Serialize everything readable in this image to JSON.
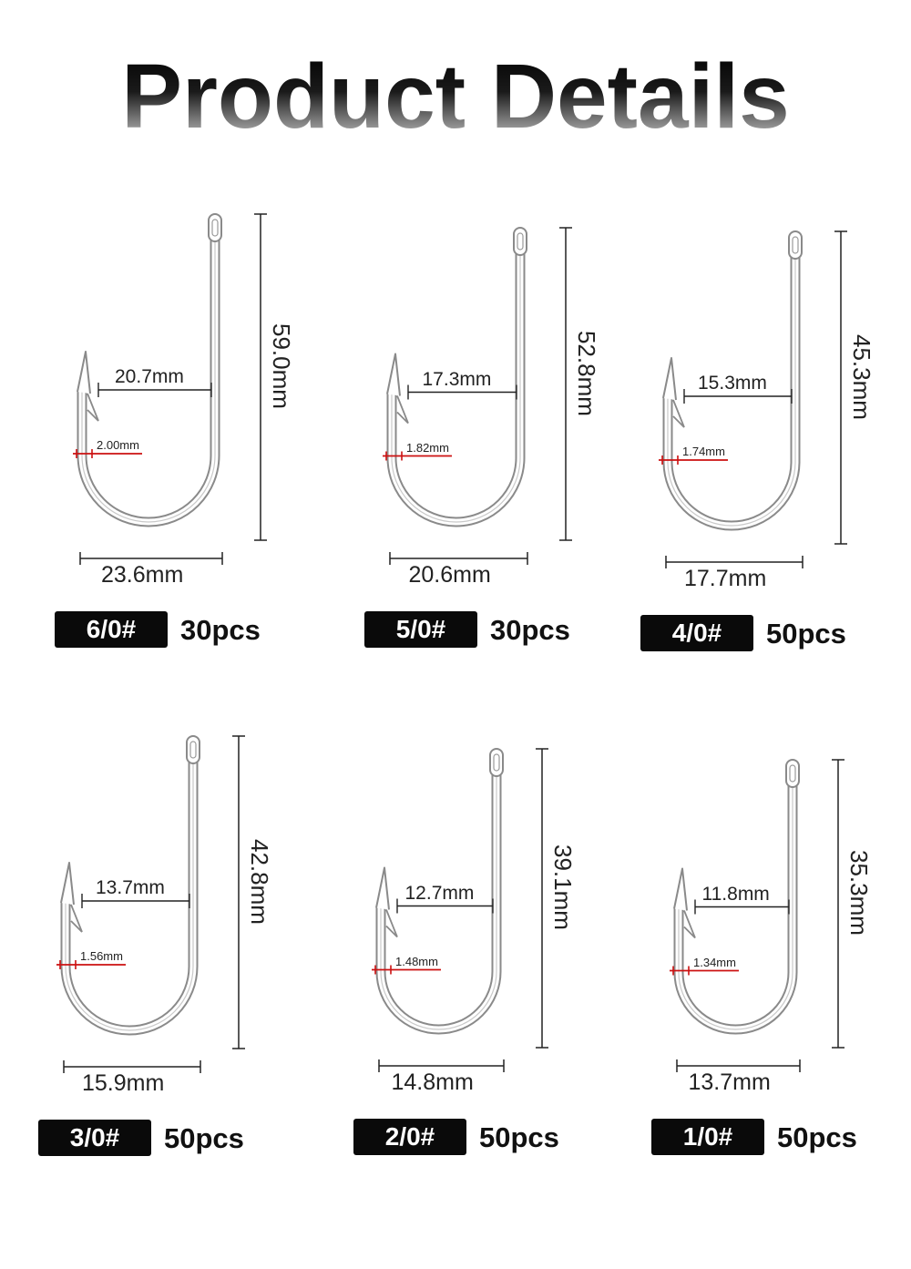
{
  "title": "Product Details",
  "colors": {
    "measure_red": "#cc1111",
    "badge_bg": "#0a0a0a",
    "hook_steel": "#8a8a8a"
  },
  "hooks": [
    {
      "size": "6/0#",
      "qty": "30pcs",
      "length": "59.0mm",
      "width": "23.6mm",
      "gap": "20.7mm",
      "wire": "2.00mm"
    },
    {
      "size": "5/0#",
      "qty": "30pcs",
      "length": "52.8mm",
      "width": "20.6mm",
      "gap": "17.3mm",
      "wire": "1.82mm"
    },
    {
      "size": "4/0#",
      "qty": "50pcs",
      "length": "45.3mm",
      "width": "17.7mm",
      "gap": "15.3mm",
      "wire": "1.74mm"
    },
    {
      "size": "3/0#",
      "qty": "50pcs",
      "length": "42.8mm",
      "width": "15.9mm",
      "gap": "13.7mm",
      "wire": "1.56mm"
    },
    {
      "size": "2/0#",
      "qty": "50pcs",
      "length": "39.1mm",
      "width": "14.8mm",
      "gap": "12.7mm",
      "wire": "1.48mm"
    },
    {
      "size": "1/0#",
      "qty": "50pcs",
      "length": "35.3mm",
      "width": "13.7mm",
      "gap": "11.8mm",
      "wire": "1.34mm"
    }
  ]
}
